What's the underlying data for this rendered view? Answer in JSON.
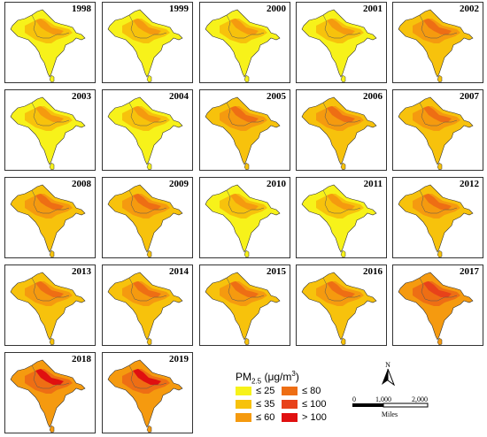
{
  "maps": [
    {
      "year": "1998",
      "level": 1
    },
    {
      "year": "1999",
      "level": 1
    },
    {
      "year": "2000",
      "level": 2
    },
    {
      "year": "2001",
      "level": 2
    },
    {
      "year": "2002",
      "level": 3
    },
    {
      "year": "2003",
      "level": 2
    },
    {
      "year": "2004",
      "level": 2
    },
    {
      "year": "2005",
      "level": 3
    },
    {
      "year": "2006",
      "level": 3
    },
    {
      "year": "2007",
      "level": 3
    },
    {
      "year": "2008",
      "level": 3
    },
    {
      "year": "2009",
      "level": 3
    },
    {
      "year": "2010",
      "level": 2
    },
    {
      "year": "2011",
      "level": 2
    },
    {
      "year": "2012",
      "level": 3
    },
    {
      "year": "2013",
      "level": 3
    },
    {
      "year": "2014",
      "level": 3
    },
    {
      "year": "2015",
      "level": 4
    },
    {
      "year": "2016",
      "level": 4
    },
    {
      "year": "2017",
      "level": 5
    },
    {
      "year": "2018",
      "level": 6
    },
    {
      "year": "2019",
      "level": 6
    }
  ],
  "legend": {
    "title_main": "PM",
    "title_sub": "2.5",
    "title_unit": "(μg/m",
    "title_sup": "3",
    "title_close": ")",
    "items": [
      {
        "label": "≤ 25",
        "color": "#f7f21a"
      },
      {
        "label": "≤ 35",
        "color": "#f7c20c"
      },
      {
        "label": "≤ 60",
        "color": "#f59a0f"
      },
      {
        "label": "≤ 80",
        "color": "#ee6e14"
      },
      {
        "label": "≤ 100",
        "color": "#e8421a"
      },
      {
        "label": "> 100",
        "color": "#e01010"
      }
    ]
  },
  "north_label": "N",
  "scale": {
    "ticks": [
      "0",
      "1,000",
      "2,000"
    ],
    "unit": "Miles"
  }
}
